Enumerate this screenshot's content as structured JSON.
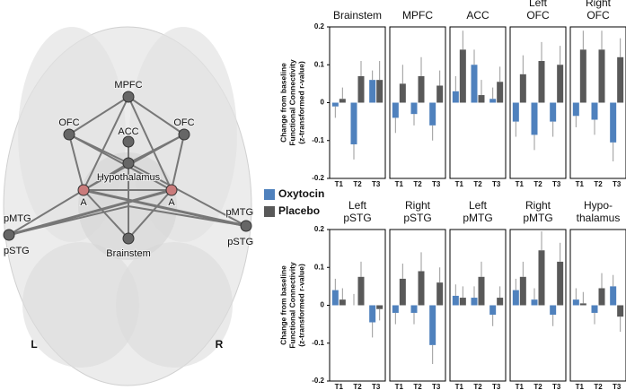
{
  "diagram": {
    "nodes": [
      "MPFC",
      "OFC",
      "ACC",
      "OFC",
      "Hypothalamus",
      "A",
      "A",
      "pMTG",
      "pSTG",
      "pMTG",
      "pSTG",
      "Brainstem"
    ],
    "sides": [
      "L",
      "R"
    ]
  },
  "chart_data": {
    "type": "bar",
    "ylabel": [
      "Change from baseline",
      "Functional Connectivity",
      "(z-transformed r-value)"
    ],
    "ylim": [
      -0.2,
      0.2
    ],
    "yticks": [
      -0.2,
      -0.1,
      0,
      0.1,
      0.2
    ],
    "categories": [
      "T1",
      "T2",
      "T3"
    ],
    "legend": [
      {
        "name": "Oxytocin",
        "color": "#4f81bd"
      },
      {
        "name": "Placebo",
        "color": "#595959"
      }
    ],
    "rows": [
      [
        {
          "title": [
            "Brainstem"
          ],
          "series": [
            {
              "values": [
                -0.01,
                -0.11,
                0.06
              ],
              "errors": [
                0.03,
                0.04,
                0.025
              ]
            },
            {
              "values": [
                0.01,
                0.07,
                0.06
              ],
              "errors": [
                0.03,
                0.04,
                0.05
              ]
            }
          ]
        },
        {
          "title": [
            "MPFC"
          ],
          "series": [
            {
              "values": [
                -0.04,
                -0.03,
                -0.06
              ],
              "errors": [
                0.04,
                0.03,
                0.04
              ]
            },
            {
              "values": [
                0.05,
                0.07,
                0.045
              ],
              "errors": [
                0.05,
                0.05,
                0.04
              ]
            }
          ]
        },
        {
          "title": [
            "ACC"
          ],
          "series": [
            {
              "values": [
                0.03,
                0.1,
                0.01
              ],
              "errors": [
                0.04,
                0.04,
                0.03
              ]
            },
            {
              "values": [
                0.14,
                0.02,
                0.055
              ],
              "errors": [
                0.05,
                0.04,
                0.04
              ]
            }
          ]
        },
        {
          "title": [
            "Left",
            "OFC"
          ],
          "series": [
            {
              "values": [
                -0.05,
                -0.085,
                -0.05
              ],
              "errors": [
                0.04,
                0.04,
                0.04
              ]
            },
            {
              "values": [
                0.075,
                0.11,
                0.1
              ],
              "errors": [
                0.05,
                0.05,
                0.05
              ]
            }
          ]
        },
        {
          "title": [
            "Right",
            "OFC"
          ],
          "series": [
            {
              "values": [
                -0.035,
                -0.045,
                -0.105
              ],
              "errors": [
                0.03,
                0.04,
                0.05
              ]
            },
            {
              "values": [
                0.14,
                0.14,
                0.12
              ],
              "errors": [
                0.05,
                0.05,
                0.05
              ]
            }
          ]
        }
      ],
      [
        {
          "title": [
            "Left",
            "pSTG"
          ],
          "series": [
            {
              "values": [
                0.04,
                0,
                -0.045
              ],
              "errors": [
                0.03,
                0.03,
                0.04
              ]
            },
            {
              "values": [
                0.015,
                0.075,
                -0.01
              ],
              "errors": [
                0.03,
                0.04,
                0.03
              ]
            }
          ]
        },
        {
          "title": [
            "Right",
            "pSTG"
          ],
          "series": [
            {
              "values": [
                -0.02,
                -0.02,
                -0.105
              ],
              "errors": [
                0.03,
                0.03,
                0.05
              ]
            },
            {
              "values": [
                0.07,
                0.09,
                0.06
              ],
              "errors": [
                0.04,
                0.05,
                0.04
              ]
            }
          ]
        },
        {
          "title": [
            "Left",
            "pMTG"
          ],
          "series": [
            {
              "values": [
                0.025,
                0.02,
                -0.025
              ],
              "errors": [
                0.03,
                0.03,
                0.03
              ]
            },
            {
              "values": [
                0.02,
                0.075,
                0.02
              ],
              "errors": [
                0.03,
                0.04,
                0.03
              ]
            }
          ]
        },
        {
          "title": [
            "Right",
            "pMTG"
          ],
          "series": [
            {
              "values": [
                0.04,
                0.015,
                -0.025
              ],
              "errors": [
                0.03,
                0.03,
                0.03
              ]
            },
            {
              "values": [
                0.075,
                0.145,
                0.115
              ],
              "errors": [
                0.04,
                0.05,
                0.05
              ]
            }
          ]
        },
        {
          "title": [
            "Hypo-",
            "thalamus"
          ],
          "series": [
            {
              "values": [
                0.015,
                -0.02,
                0.05
              ],
              "errors": [
                0.03,
                0.03,
                0.03
              ]
            },
            {
              "values": [
                0.005,
                0.045,
                -0.03
              ],
              "errors": [
                0.03,
                0.04,
                0.04
              ]
            }
          ]
        }
      ]
    ]
  }
}
